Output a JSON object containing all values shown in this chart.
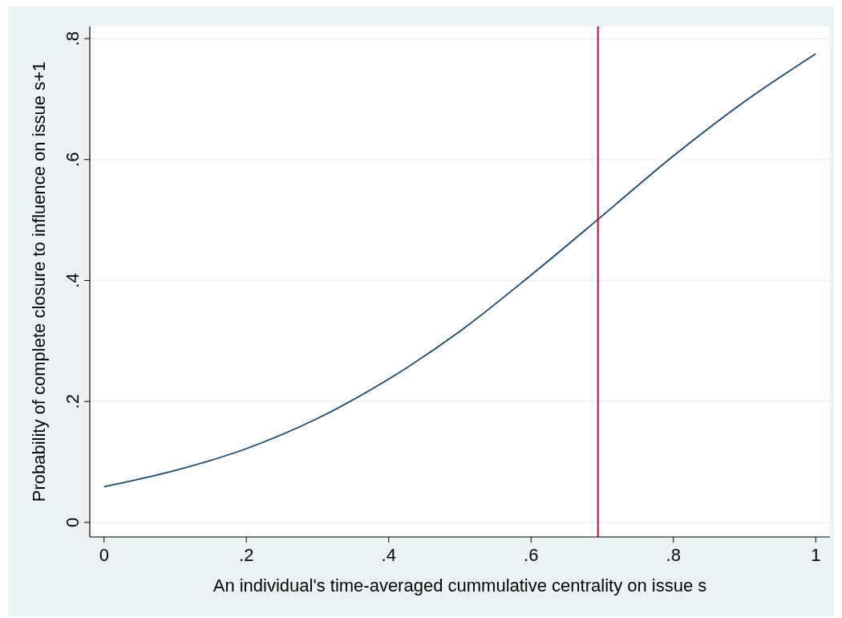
{
  "chart_data": {
    "type": "line",
    "xlabel": "An individual's time-averaged cummulative centrality on issue s",
    "ylabel": "Probability of complete closure to influence on issue s+1",
    "x": [
      0,
      0.1,
      0.2,
      0.3,
      0.4,
      0.5,
      0.6,
      0.7,
      0.8,
      0.9,
      1
    ],
    "series": [
      {
        "color": "#1a476f",
        "values": [
          0.059,
          0.086,
          0.122,
          0.172,
          0.237,
          0.316,
          0.409,
          0.507,
          0.606,
          0.696,
          0.775
        ]
      }
    ],
    "xlim": [
      -0.02,
      1.02
    ],
    "ylim": [
      -0.024,
      0.82
    ],
    "xticks": [
      {
        "value": 0,
        "label": "0"
      },
      {
        "value": 0.2,
        "label": ".2"
      },
      {
        "value": 0.4,
        "label": ".4"
      },
      {
        "value": 0.6,
        "label": ".6"
      },
      {
        "value": 0.8,
        "label": ".8"
      },
      {
        "value": 1,
        "label": "1"
      }
    ],
    "yticks": [
      {
        "value": 0,
        "label": "0"
      },
      {
        "value": 0.2,
        "label": ".2"
      },
      {
        "value": 0.4,
        "label": ".4"
      },
      {
        "value": 0.6,
        "label": ".6"
      },
      {
        "value": 0.8,
        "label": ".8"
      }
    ],
    "grid": "y",
    "marker": "none",
    "line_style": "solid",
    "ref_lines": [
      {
        "axis": "x",
        "value": 0.694,
        "color": "#c10534"
      }
    ]
  }
}
